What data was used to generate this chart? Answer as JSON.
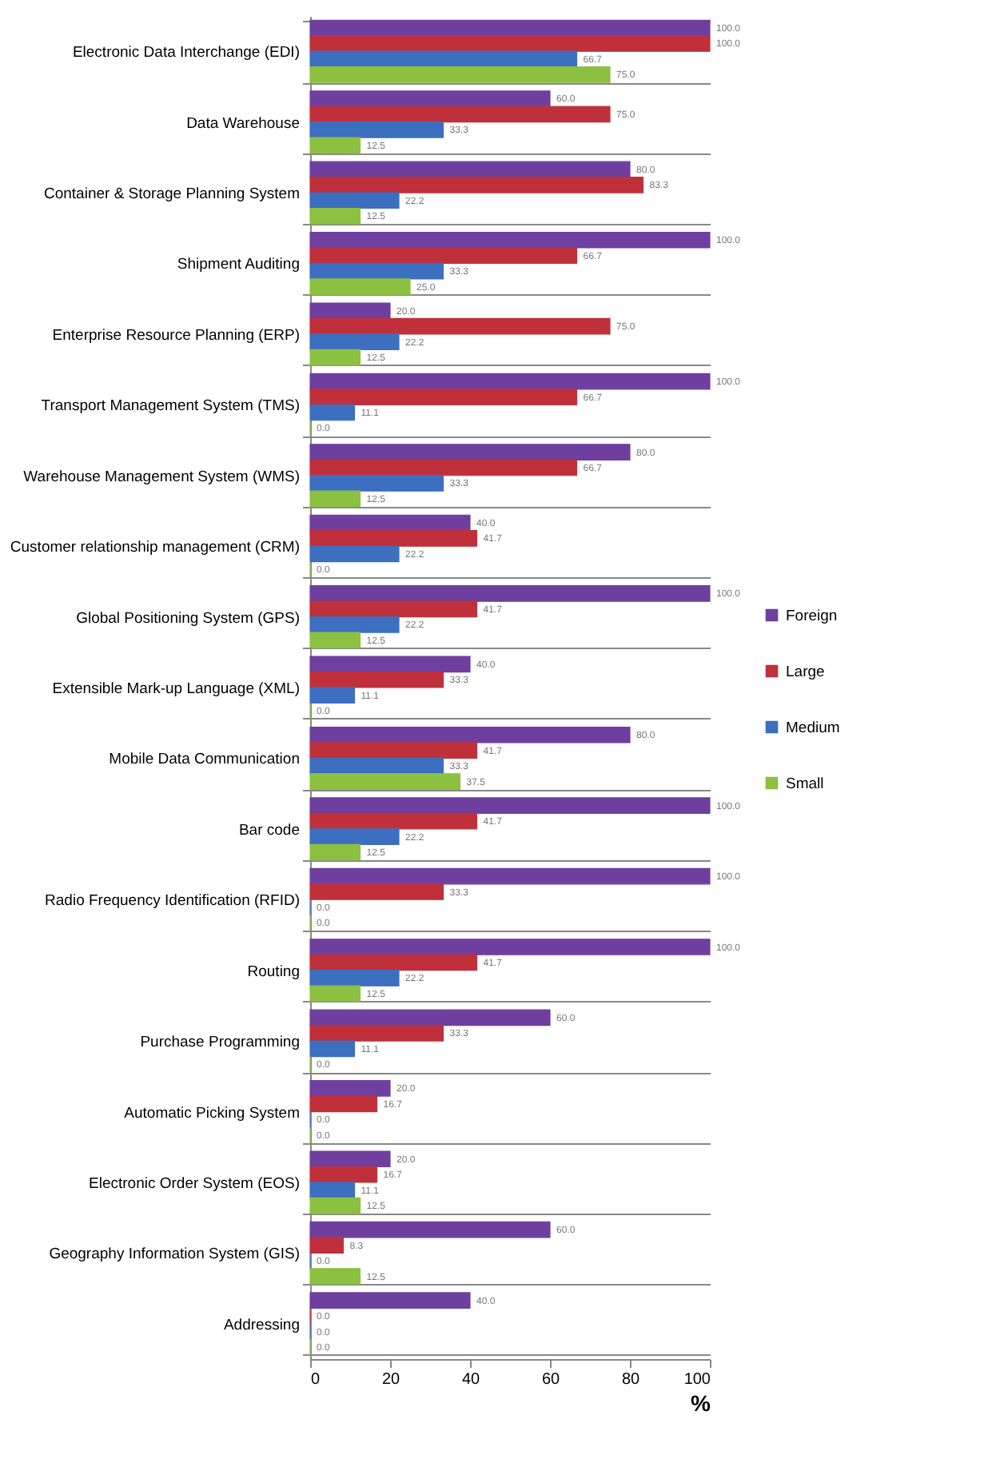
{
  "chart_data": {
    "type": "bar",
    "orientation": "horizontal",
    "xlabel": "%",
    "categories": [
      "Electronic Data Interchange (EDI)",
      "Data Warehouse",
      "Container & Storage Planning System",
      "Shipment Auditing",
      "Enterprise Resource Planning (ERP)",
      "Transport Management System (TMS)",
      "Warehouse Management System (WMS)",
      "Customer relationship management (CRM)",
      "Global Positioning System (GPS)",
      "Extensible Mark-up Language (XML)",
      "Mobile Data Communication",
      "Bar code",
      "Radio Frequency Identification (RFID)",
      "Routing",
      "Purchase Programming",
      "Automatic Picking System",
      "Electronic Order System (EOS)",
      "Geography Information System (GIS)",
      "Addressing"
    ],
    "series": [
      {
        "name": "Foreign",
        "color": "#6f3fa0",
        "values": [
          100,
          60,
          80,
          100,
          20,
          100,
          80,
          40,
          100,
          40,
          80,
          100,
          100,
          100,
          60,
          20,
          20,
          60,
          40
        ],
        "value_labels": [
          "100.0",
          "60.0",
          "80.0",
          "100.0",
          "20.0",
          "100.0",
          "80.0",
          "40.0",
          "100.0",
          "40.0",
          "80.0",
          "100.0",
          "100.0",
          "100.0",
          "60.0",
          "20.0",
          "20.0",
          "60.0",
          "40.0"
        ]
      },
      {
        "name": "Large",
        "color": "#c0303a",
        "values": [
          100,
          75,
          83.3,
          66.7,
          75,
          66.7,
          66.7,
          41.7,
          41.7,
          33.3,
          41.7,
          41.7,
          33.3,
          41.7,
          33.3,
          16.7,
          16.7,
          8.3,
          0
        ],
        "value_labels": [
          "100.0",
          "75.0",
          "83.3",
          "66.7",
          "75.0",
          "66.7",
          "66.7",
          "41.7",
          "41.7",
          "33.3",
          "41.7",
          "41.7",
          "33.3",
          "41.7",
          "33.3",
          "16.7",
          "16.7",
          "8.3",
          "0.0"
        ]
      },
      {
        "name": "Medium",
        "color": "#3c6fc0",
        "values": [
          66.7,
          33.3,
          22.2,
          33.3,
          22.2,
          11.1,
          33.3,
          22.2,
          22.2,
          11.1,
          33.3,
          22.2,
          0,
          22.2,
          11.1,
          0,
          11.1,
          0,
          0
        ],
        "value_labels": [
          "66.7",
          "33.3",
          "22.2",
          "33.3",
          "22.2",
          "11.1",
          "33.3",
          "22.2",
          "22.2",
          "11.1",
          "33.3",
          "22.2",
          "0.0",
          "22.2",
          "11.1",
          "0.0",
          "11.1",
          "0.0",
          "0.0"
        ]
      },
      {
        "name": "Small",
        "color": "#8cc040",
        "values": [
          75,
          12.5,
          12.5,
          25,
          12.5,
          0,
          12.5,
          0,
          12.5,
          0,
          37.5,
          12.5,
          0,
          12.5,
          0,
          0,
          12.5,
          12.5,
          0
        ],
        "value_labels": [
          "75.0",
          "12.5",
          "12.5",
          "25.0",
          "12.5",
          "0.0",
          "12.5",
          "0.0",
          "12.5",
          "0.0",
          "37.5",
          "12.5",
          "0.0",
          "12.5",
          "0.0",
          "0.0",
          "12.5",
          "12.5",
          "0.0"
        ]
      }
    ],
    "xlim": [
      0,
      100
    ],
    "xticks": [
      0,
      20,
      40,
      60,
      80,
      100
    ],
    "grid": "y",
    "legend": "right"
  }
}
